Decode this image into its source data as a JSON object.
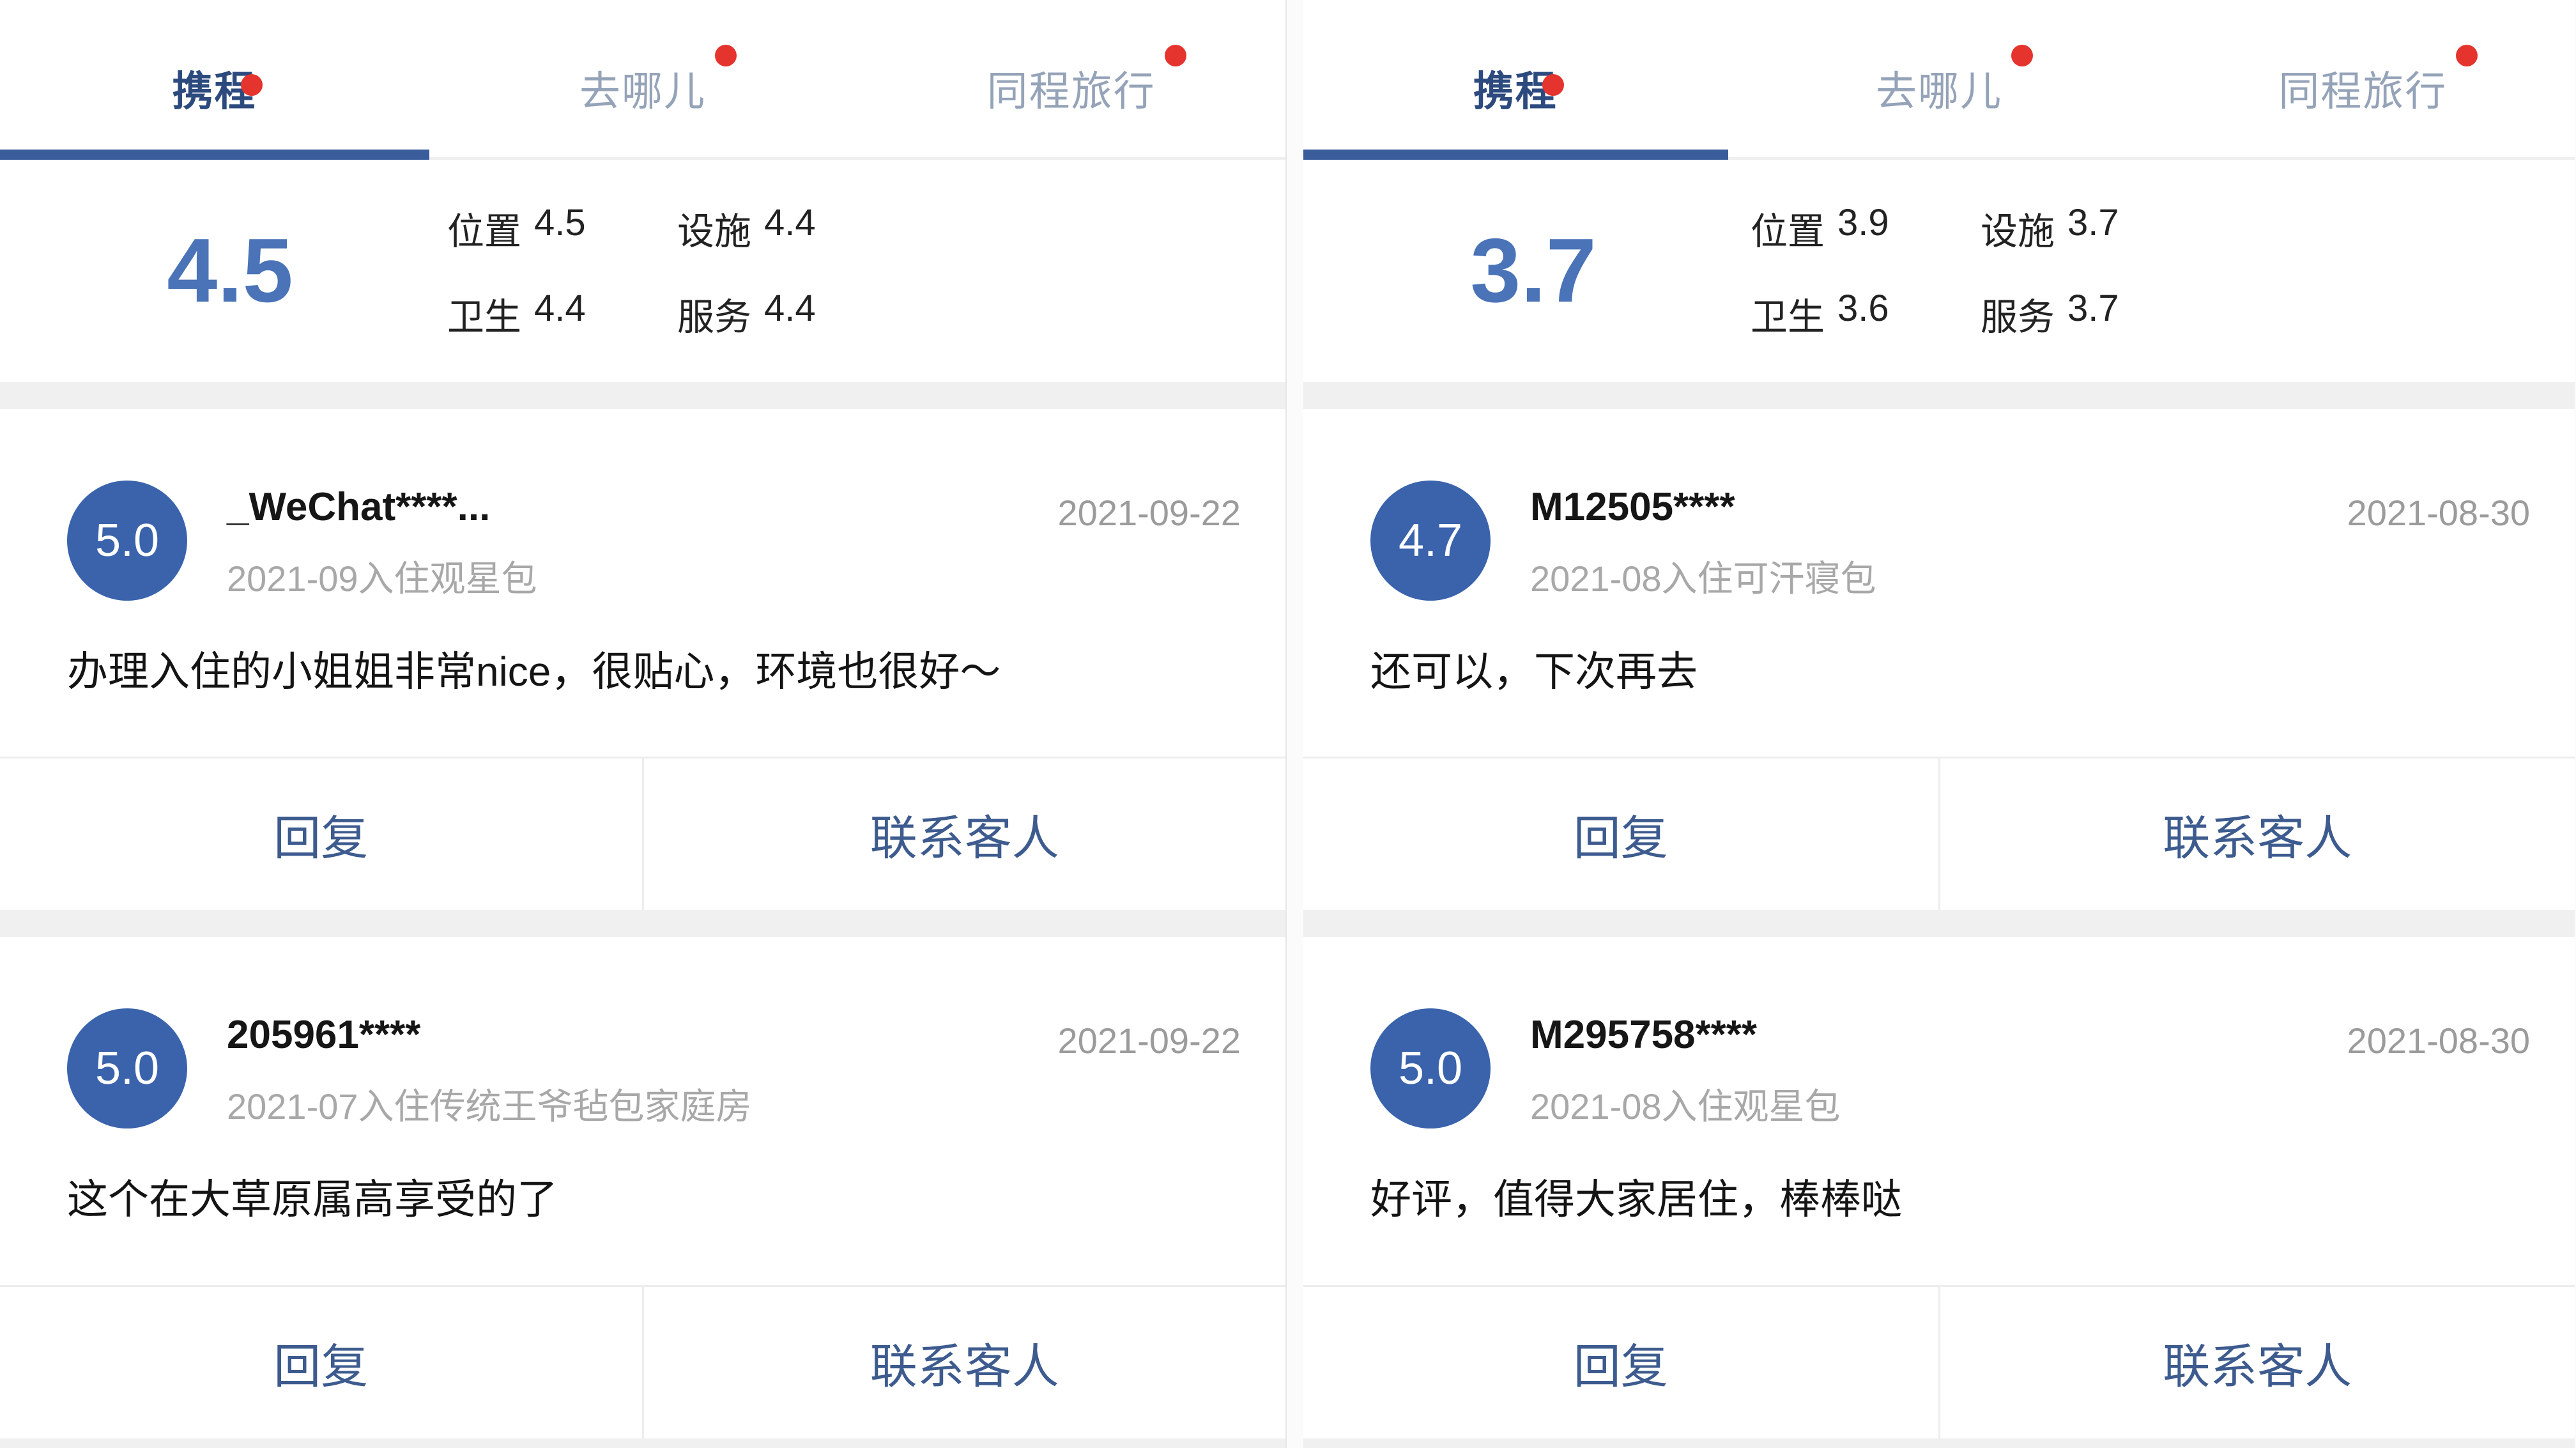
{
  "colors": {
    "tab_active": "#2c4a7e",
    "tab_inactive": "#95a3b8",
    "tab_indicator": "#3a5c9a",
    "badge_red": "#e5332d",
    "avatar_blue": "#3a63ac",
    "overall_blue": "#4a73b8",
    "button_text": "#3d5b8e"
  },
  "tabs": {
    "ctrip": "携程",
    "qunar": "去哪儿",
    "tongcheng": "同程旅行"
  },
  "actions": {
    "reply": "回复",
    "contact": "联系客人"
  },
  "panels": [
    {
      "rating": {
        "overall": "4.5",
        "scores": [
          {
            "label": "位置",
            "value": "4.5"
          },
          {
            "label": "设施",
            "value": "4.4"
          },
          {
            "label": "卫生",
            "value": "4.4"
          },
          {
            "label": "服务",
            "value": "4.4"
          }
        ]
      },
      "reviews": [
        {
          "score": "5.0",
          "user": "_WeChat****...",
          "date": "2021-09-22",
          "stay": "2021-09入住观星包",
          "text": "办理入住的小姐姐非常nice，很贴心，环境也很好～"
        },
        {
          "score": "5.0",
          "user": "205961****",
          "date": "2021-09-22",
          "stay": "2021-07入住传统王爷毡包家庭房",
          "text": "这个在大草原属高享受的了"
        }
      ]
    },
    {
      "rating": {
        "overall": "3.7",
        "scores": [
          {
            "label": "位置",
            "value": "3.9"
          },
          {
            "label": "设施",
            "value": "3.7"
          },
          {
            "label": "卫生",
            "value": "3.6"
          },
          {
            "label": "服务",
            "value": "3.7"
          }
        ]
      },
      "reviews": [
        {
          "score": "4.7",
          "user": "M12505****",
          "date": "2021-08-30",
          "stay": "2021-08入住可汗寝包",
          "text": "还可以，下次再去"
        },
        {
          "score": "5.0",
          "user": "M295758****",
          "date": "2021-08-30",
          "stay": "2021-08入住观星包",
          "text": "好评，值得大家居住，棒棒哒"
        }
      ]
    }
  ]
}
